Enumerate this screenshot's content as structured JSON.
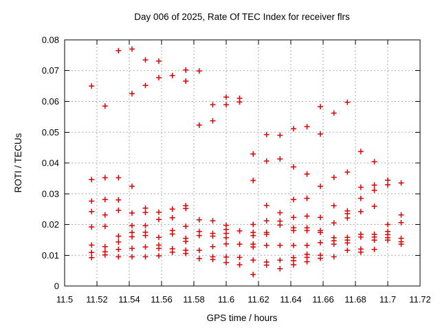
{
  "title": "Day 006 of 2025, Rate Of TEC Index for receiver flrs",
  "colors": {
    "background": "#ffffff",
    "axis": "#000000",
    "grid": "#aaaaaa",
    "marker": "#dd0000"
  },
  "chart_data": {
    "type": "scatter",
    "title": "Day 006 of 2025, Rate Of TEC Index for receiver flrs",
    "xlabel": "GPS time / hours",
    "ylabel": "ROTI / TECUs",
    "xlim": [
      11.5,
      11.72
    ],
    "ylim": [
      0,
      0.08
    ],
    "xticks": [
      11.5,
      11.52,
      11.54,
      11.56,
      11.58,
      11.6,
      11.62,
      11.64,
      11.66,
      11.68,
      11.7,
      11.72
    ],
    "xtick_labels": [
      "11.5",
      "11.52",
      "11.54",
      "11.56",
      "11.58",
      "11.6",
      "11.62",
      "11.64",
      "11.66",
      "11.68",
      "11.7",
      "11.72"
    ],
    "yticks": [
      0,
      0.01,
      0.02,
      0.03,
      0.04,
      0.05,
      0.06,
      0.07,
      0.08
    ],
    "ytick_labels": [
      "0",
      "0.01",
      "0.02",
      "0.03",
      "0.04",
      "0.05",
      "0.06",
      "0.07",
      "0.08"
    ],
    "grid": true,
    "legend": "none",
    "marker": "plus",
    "series": [
      {
        "name": "ROTI",
        "points": [
          [
            11.5167,
            0.065
          ],
          [
            11.5167,
            0.0346
          ],
          [
            11.5167,
            0.0276
          ],
          [
            11.5167,
            0.0242
          ],
          [
            11.5167,
            0.0192
          ],
          [
            11.5167,
            0.0133
          ],
          [
            11.5167,
            0.0109
          ],
          [
            11.5167,
            0.0092
          ],
          [
            11.525,
            0.0585
          ],
          [
            11.525,
            0.0352
          ],
          [
            11.525,
            0.0281
          ],
          [
            11.525,
            0.0231
          ],
          [
            11.525,
            0.0194
          ],
          [
            11.525,
            0.0128
          ],
          [
            11.525,
            0.0111
          ],
          [
            11.525,
            0.0101
          ],
          [
            11.5333,
            0.0765
          ],
          [
            11.5333,
            0.0352
          ],
          [
            11.5333,
            0.028
          ],
          [
            11.5333,
            0.0246
          ],
          [
            11.5333,
            0.0162
          ],
          [
            11.5333,
            0.0143
          ],
          [
            11.5333,
            0.0119
          ],
          [
            11.5333,
            0.0095
          ],
          [
            11.5417,
            0.077
          ],
          [
            11.5417,
            0.0625
          ],
          [
            11.5417,
            0.0324
          ],
          [
            11.5417,
            0.0237
          ],
          [
            11.5417,
            0.0196
          ],
          [
            11.5417,
            0.0174
          ],
          [
            11.5417,
            0.016
          ],
          [
            11.5417,
            0.0122
          ],
          [
            11.5417,
            0.0095
          ],
          [
            11.55,
            0.0735
          ],
          [
            11.55,
            0.0652
          ],
          [
            11.55,
            0.0253
          ],
          [
            11.55,
            0.0239
          ],
          [
            11.55,
            0.0196
          ],
          [
            11.55,
            0.0175
          ],
          [
            11.55,
            0.0164
          ],
          [
            11.55,
            0.0127
          ],
          [
            11.55,
            0.0095
          ],
          [
            11.5583,
            0.0731
          ],
          [
            11.5583,
            0.0677
          ],
          [
            11.5583,
            0.024
          ],
          [
            11.5583,
            0.0216
          ],
          [
            11.5583,
            0.0158
          ],
          [
            11.5583,
            0.0133
          ],
          [
            11.5583,
            0.0122
          ],
          [
            11.5583,
            0.0098
          ],
          [
            11.5667,
            0.0684
          ],
          [
            11.5667,
            0.025
          ],
          [
            11.5667,
            0.0222
          ],
          [
            11.5667,
            0.018
          ],
          [
            11.5667,
            0.0169
          ],
          [
            11.5667,
            0.0121
          ],
          [
            11.5667,
            0.011
          ],
          [
            11.575,
            0.0702
          ],
          [
            11.575,
            0.0666
          ],
          [
            11.575,
            0.0261
          ],
          [
            11.575,
            0.0252
          ],
          [
            11.575,
            0.0194
          ],
          [
            11.575,
            0.0155
          ],
          [
            11.575,
            0.0145
          ],
          [
            11.575,
            0.0116
          ],
          [
            11.575,
            0.0106
          ],
          [
            11.5833,
            0.0699
          ],
          [
            11.5833,
            0.0523
          ],
          [
            11.5833,
            0.0215
          ],
          [
            11.5833,
            0.0177
          ],
          [
            11.5833,
            0.0164
          ],
          [
            11.5833,
            0.0116
          ],
          [
            11.5833,
            0.0089
          ],
          [
            11.5917,
            0.0589
          ],
          [
            11.5917,
            0.0537
          ],
          [
            11.5917,
            0.0212
          ],
          [
            11.5917,
            0.0171
          ],
          [
            11.5917,
            0.0162
          ],
          [
            11.5917,
            0.0128
          ],
          [
            11.5917,
            0.0095
          ],
          [
            11.5917,
            0.0086
          ],
          [
            11.6,
            0.0614
          ],
          [
            11.6,
            0.0589
          ],
          [
            11.6,
            0.0197
          ],
          [
            11.6,
            0.0184
          ],
          [
            11.6,
            0.0171
          ],
          [
            11.6,
            0.0157
          ],
          [
            11.6,
            0.0137
          ],
          [
            11.6,
            0.0094
          ],
          [
            11.6,
            0.0076
          ],
          [
            11.6083,
            0.061
          ],
          [
            11.6083,
            0.0598
          ],
          [
            11.6083,
            0.0179
          ],
          [
            11.6083,
            0.0136
          ],
          [
            11.6083,
            0.0093
          ],
          [
            11.6083,
            0.0069
          ],
          [
            11.6167,
            0.0429
          ],
          [
            11.6167,
            0.0343
          ],
          [
            11.6167,
            0.02
          ],
          [
            11.6167,
            0.0174
          ],
          [
            11.6167,
            0.0164
          ],
          [
            11.6167,
            0.0136
          ],
          [
            11.6167,
            0.0127
          ],
          [
            11.6167,
            0.0084
          ],
          [
            11.6167,
            0.0037
          ],
          [
            11.625,
            0.0492
          ],
          [
            11.625,
            0.0406
          ],
          [
            11.625,
            0.0262
          ],
          [
            11.625,
            0.0212
          ],
          [
            11.625,
            0.0174
          ],
          [
            11.625,
            0.0168
          ],
          [
            11.625,
            0.0132
          ],
          [
            11.625,
            0.0078
          ],
          [
            11.625,
            0.0068
          ],
          [
            11.6333,
            0.049
          ],
          [
            11.6333,
            0.0413
          ],
          [
            11.6333,
            0.0238
          ],
          [
            11.6333,
            0.0211
          ],
          [
            11.6333,
            0.0198
          ],
          [
            11.6333,
            0.0132
          ],
          [
            11.6333,
            0.0084
          ],
          [
            11.6333,
            0.0056
          ],
          [
            11.6417,
            0.0511
          ],
          [
            11.6417,
            0.0387
          ],
          [
            11.6417,
            0.0281
          ],
          [
            11.6417,
            0.0223
          ],
          [
            11.6417,
            0.0189
          ],
          [
            11.6417,
            0.018
          ],
          [
            11.6417,
            0.0132
          ],
          [
            11.6417,
            0.0092
          ],
          [
            11.6417,
            0.0082
          ],
          [
            11.6417,
            0.0069
          ],
          [
            11.65,
            0.0518
          ],
          [
            11.65,
            0.0364
          ],
          [
            11.65,
            0.0285
          ],
          [
            11.65,
            0.0227
          ],
          [
            11.65,
            0.0189
          ],
          [
            11.65,
            0.018
          ],
          [
            11.65,
            0.0132
          ],
          [
            11.65,
            0.0103
          ],
          [
            11.65,
            0.0093
          ],
          [
            11.65,
            0.0079
          ],
          [
            11.6583,
            0.0583
          ],
          [
            11.6583,
            0.0494
          ],
          [
            11.6583,
            0.0324
          ],
          [
            11.6583,
            0.0223
          ],
          [
            11.6583,
            0.018
          ],
          [
            11.6583,
            0.0174
          ],
          [
            11.6583,
            0.0141
          ],
          [
            11.6583,
            0.01
          ],
          [
            11.6583,
            0.009
          ],
          [
            11.6667,
            0.0562
          ],
          [
            11.6667,
            0.0353
          ],
          [
            11.6667,
            0.0261
          ],
          [
            11.6667,
            0.0205
          ],
          [
            11.6667,
            0.0157
          ],
          [
            11.6667,
            0.0147
          ],
          [
            11.6667,
            0.0136
          ],
          [
            11.6667,
            0.0095
          ],
          [
            11.675,
            0.0597
          ],
          [
            11.675,
            0.037
          ],
          [
            11.675,
            0.0244
          ],
          [
            11.675,
            0.0235
          ],
          [
            11.675,
            0.0221
          ],
          [
            11.675,
            0.0158
          ],
          [
            11.675,
            0.0149
          ],
          [
            11.675,
            0.014
          ],
          [
            11.675,
            0.0116
          ],
          [
            11.6833,
            0.0437
          ],
          [
            11.6833,
            0.0321
          ],
          [
            11.6833,
            0.0285
          ],
          [
            11.6833,
            0.0242
          ],
          [
            11.6833,
            0.0168
          ],
          [
            11.6833,
            0.0159
          ],
          [
            11.6833,
            0.012
          ],
          [
            11.6833,
            0.011
          ],
          [
            11.6917,
            0.0404
          ],
          [
            11.6917,
            0.0328
          ],
          [
            11.6917,
            0.0311
          ],
          [
            11.6917,
            0.0259
          ],
          [
            11.6917,
            0.0168
          ],
          [
            11.6917,
            0.0159
          ],
          [
            11.6917,
            0.0149
          ],
          [
            11.6917,
            0.0119
          ],
          [
            11.7,
            0.0344
          ],
          [
            11.7,
            0.0329
          ],
          [
            11.7,
            0.02
          ],
          [
            11.7,
            0.0177
          ],
          [
            11.7,
            0.0167
          ],
          [
            11.7,
            0.0157
          ],
          [
            11.7,
            0.0149
          ],
          [
            11.7083,
            0.0335
          ],
          [
            11.7083,
            0.0231
          ],
          [
            11.7083,
            0.0206
          ],
          [
            11.7083,
            0.0155
          ],
          [
            11.7083,
            0.0144
          ],
          [
            11.7083,
            0.0136
          ]
        ]
      }
    ]
  }
}
